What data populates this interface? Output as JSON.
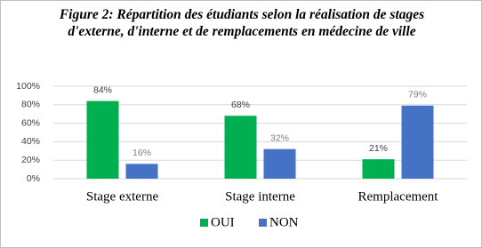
{
  "chart_data": {
    "type": "bar",
    "title": "Figure 2: Répartition des étudiants selon la réalisation de stages d'externe, d'interne et de remplacements en médecine de ville",
    "categories": [
      "Stage externe",
      "Stage interne",
      "Remplacement"
    ],
    "series": [
      {
        "name": "OUI",
        "color": "#00b050",
        "values": [
          84,
          68,
          21
        ],
        "value_labels": [
          "84%",
          "68%",
          "21%"
        ]
      },
      {
        "name": "NON",
        "color": "#4472c4",
        "values": [
          16,
          32,
          79
        ],
        "value_labels": [
          "16%",
          "32%",
          "79%"
        ]
      }
    ],
    "ylim": [
      0,
      100
    ],
    "yticks": [
      {
        "value": 0,
        "label": "0%"
      },
      {
        "value": 20,
        "label": "20%"
      },
      {
        "value": 40,
        "label": "40%"
      },
      {
        "value": 60,
        "label": "60%"
      },
      {
        "value": 80,
        "label": "80%"
      },
      {
        "value": 100,
        "label": "100%"
      }
    ],
    "grid": true
  }
}
